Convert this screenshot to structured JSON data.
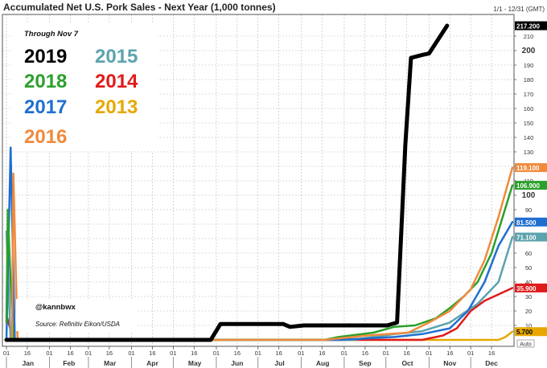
{
  "chart_data": {
    "type": "line",
    "title": "Accumulated Net U.S. Pork Sales - Next Year (1,000 tonnes)",
    "date_range": "1/1 - 12/31 (GMT)",
    "xlabel": "",
    "ylabel": "",
    "ylim": [
      0,
      220
    ],
    "yticks": [
      10,
      20,
      30,
      40,
      50,
      60,
      70,
      80,
      90,
      100,
      110,
      120,
      130,
      140,
      150,
      160,
      170,
      180,
      190,
      200,
      210
    ],
    "ytick_labels_bold": [
      100,
      200
    ],
    "xlim_day": [
      1,
      365
    ],
    "months": [
      "Jan",
      "Feb",
      "Mar",
      "Apr",
      "May",
      "Jun",
      "Jul",
      "Aug",
      "Sep",
      "Oct",
      "Nov",
      "Dec"
    ],
    "minor_x_ticks": [
      {
        "label": "01",
        "day": 1
      },
      {
        "label": "16",
        "day": 16
      },
      {
        "label": "01",
        "day": 32
      },
      {
        "label": "16",
        "day": 47
      },
      {
        "label": "01",
        "day": 60
      },
      {
        "label": "16",
        "day": 75
      },
      {
        "label": "01",
        "day": 91
      },
      {
        "label": "16",
        "day": 106
      },
      {
        "label": "01",
        "day": 121
      },
      {
        "label": "16",
        "day": 136
      },
      {
        "label": "01",
        "day": 152
      },
      {
        "label": "16",
        "day": 167
      },
      {
        "label": "01",
        "day": 182
      },
      {
        "label": "16",
        "day": 197
      },
      {
        "label": "01",
        "day": 213
      },
      {
        "label": "16",
        "day": 228
      },
      {
        "label": "01",
        "day": 244
      },
      {
        "label": "16",
        "day": 259
      },
      {
        "label": "01",
        "day": 274
      },
      {
        "label": "16",
        "day": 289
      },
      {
        "label": "01",
        "day": 305
      },
      {
        "label": "16",
        "day": 320
      },
      {
        "label": "01",
        "day": 335
      },
      {
        "label": "16",
        "day": 350
      }
    ],
    "grid": true,
    "legend_position": "top-left",
    "legend_note": "Through Nov 7",
    "annotations": [
      "@kannbwx",
      "Source: Refinitiv Eikon/USDA"
    ],
    "auto_label": "Auto",
    "series": [
      {
        "name": "2019",
        "color": "#000000",
        "width": 5,
        "last_label": "217.200",
        "last_value": 217.2,
        "points": [
          [
            1,
            0
          ],
          [
            148,
            0
          ],
          [
            155,
            11
          ],
          [
            200,
            11
          ],
          [
            205,
            9
          ],
          [
            215,
            10
          ],
          [
            275,
            10
          ],
          [
            282,
            12
          ],
          [
            288,
            135
          ],
          [
            292,
            195
          ],
          [
            300,
            197
          ],
          [
            305,
            198
          ],
          [
            318,
            217.2
          ]
        ]
      },
      {
        "name": "2018",
        "color": "#2ca02c",
        "width": 2.5,
        "last_label": "106.900",
        "last_value": 106.9,
        "points": [
          [
            1,
            12
          ],
          [
            2,
            90
          ],
          [
            4,
            40
          ],
          [
            6,
            0
          ],
          [
            230,
            0
          ],
          [
            240,
            2
          ],
          [
            265,
            5
          ],
          [
            280,
            9
          ],
          [
            295,
            10
          ],
          [
            310,
            15
          ],
          [
            320,
            22
          ],
          [
            330,
            30
          ],
          [
            340,
            40
          ],
          [
            350,
            60
          ],
          [
            358,
            85
          ],
          [
            365,
            106.9
          ]
        ]
      },
      {
        "name": "2017",
        "color": "#1f6fd1",
        "width": 2.5,
        "last_label": "81.500",
        "last_value": 81.5,
        "points": [
          [
            1,
            0
          ],
          [
            4,
            133
          ],
          [
            7,
            0
          ],
          [
            240,
            0
          ],
          [
            280,
            2
          ],
          [
            300,
            4
          ],
          [
            320,
            8
          ],
          [
            333,
            20
          ],
          [
            345,
            40
          ],
          [
            355,
            65
          ],
          [
            365,
            81.5
          ]
        ]
      },
      {
        "name": "2016",
        "color": "#f08a3c",
        "width": 2.5,
        "last_label": "119.100",
        "last_value": 119.1,
        "points": [
          [
            1,
            0
          ],
          [
            5,
            0
          ],
          [
            6,
            115
          ],
          [
            9,
            0
          ],
          [
            230,
            0
          ],
          [
            260,
            3
          ],
          [
            290,
            5
          ],
          [
            305,
            12
          ],
          [
            320,
            20
          ],
          [
            335,
            35
          ],
          [
            345,
            55
          ],
          [
            355,
            85
          ],
          [
            365,
            119.1
          ]
        ]
      },
      {
        "name": "2015",
        "color": "#5ba3ad",
        "width": 2.5,
        "last_label": "71.100",
        "last_value": 71.1,
        "points": [
          [
            1,
            75
          ],
          [
            4,
            0
          ],
          [
            250,
            0
          ],
          [
            280,
            4
          ],
          [
            300,
            6
          ],
          [
            320,
            12
          ],
          [
            340,
            25
          ],
          [
            355,
            40
          ],
          [
            365,
            71.1
          ]
        ]
      },
      {
        "name": "2014",
        "color": "#e01b1b",
        "width": 2.5,
        "last_label": "35.900",
        "last_value": 35.9,
        "points": [
          [
            1,
            17
          ],
          [
            6,
            0
          ],
          [
            300,
            0
          ],
          [
            315,
            3
          ],
          [
            325,
            8
          ],
          [
            335,
            20
          ],
          [
            345,
            27
          ],
          [
            365,
            35.9
          ]
        ]
      },
      {
        "name": "2013",
        "color": "#e6a800",
        "width": 2.5,
        "last_label": "5.700",
        "last_value": 5.7,
        "points": [
          [
            1,
            0
          ],
          [
            355,
            0
          ],
          [
            360,
            2
          ],
          [
            365,
            5.7
          ]
        ]
      }
    ]
  }
}
